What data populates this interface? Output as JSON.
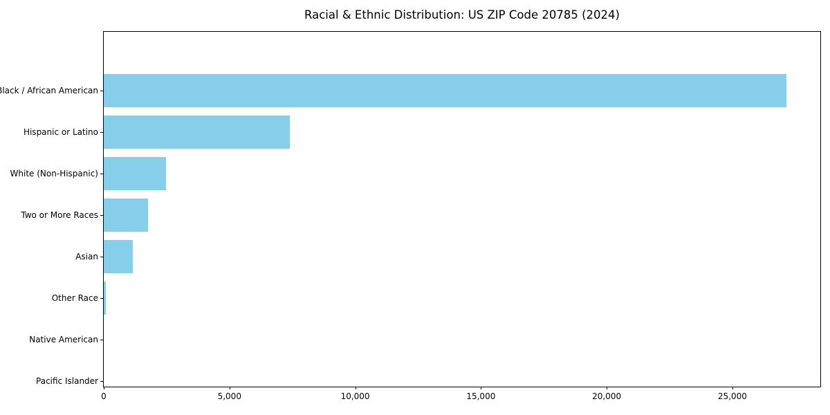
{
  "colors": {
    "bar": "#87CEEB",
    "axis": "#000000",
    "background": "#FFFFFF",
    "text": "#000000"
  },
  "chart_data": {
    "type": "bar",
    "orientation": "horizontal",
    "title": "Racial & Ethnic Distribution: US ZIP Code 20785 (2024)",
    "categories": [
      "Black / African American",
      "Hispanic or Latino",
      "White (Non-Hispanic)",
      "Two or More Races",
      "Asian",
      "Other Race",
      "Native American",
      "Pacific Islander"
    ],
    "values": [
      27150,
      7400,
      2480,
      1760,
      1150,
      80,
      0,
      0
    ],
    "xlabel": "",
    "ylabel": "",
    "xlim": [
      0,
      28550
    ],
    "x_ticks": [
      0,
      5000,
      10000,
      15000,
      20000,
      25000
    ],
    "x_tick_labels": [
      "0",
      "5,000",
      "10,000",
      "15,000",
      "20,000",
      "25,000"
    ],
    "grid": false,
    "legend": null,
    "bar_color": "#87CEEB",
    "frame": "full-box"
  }
}
